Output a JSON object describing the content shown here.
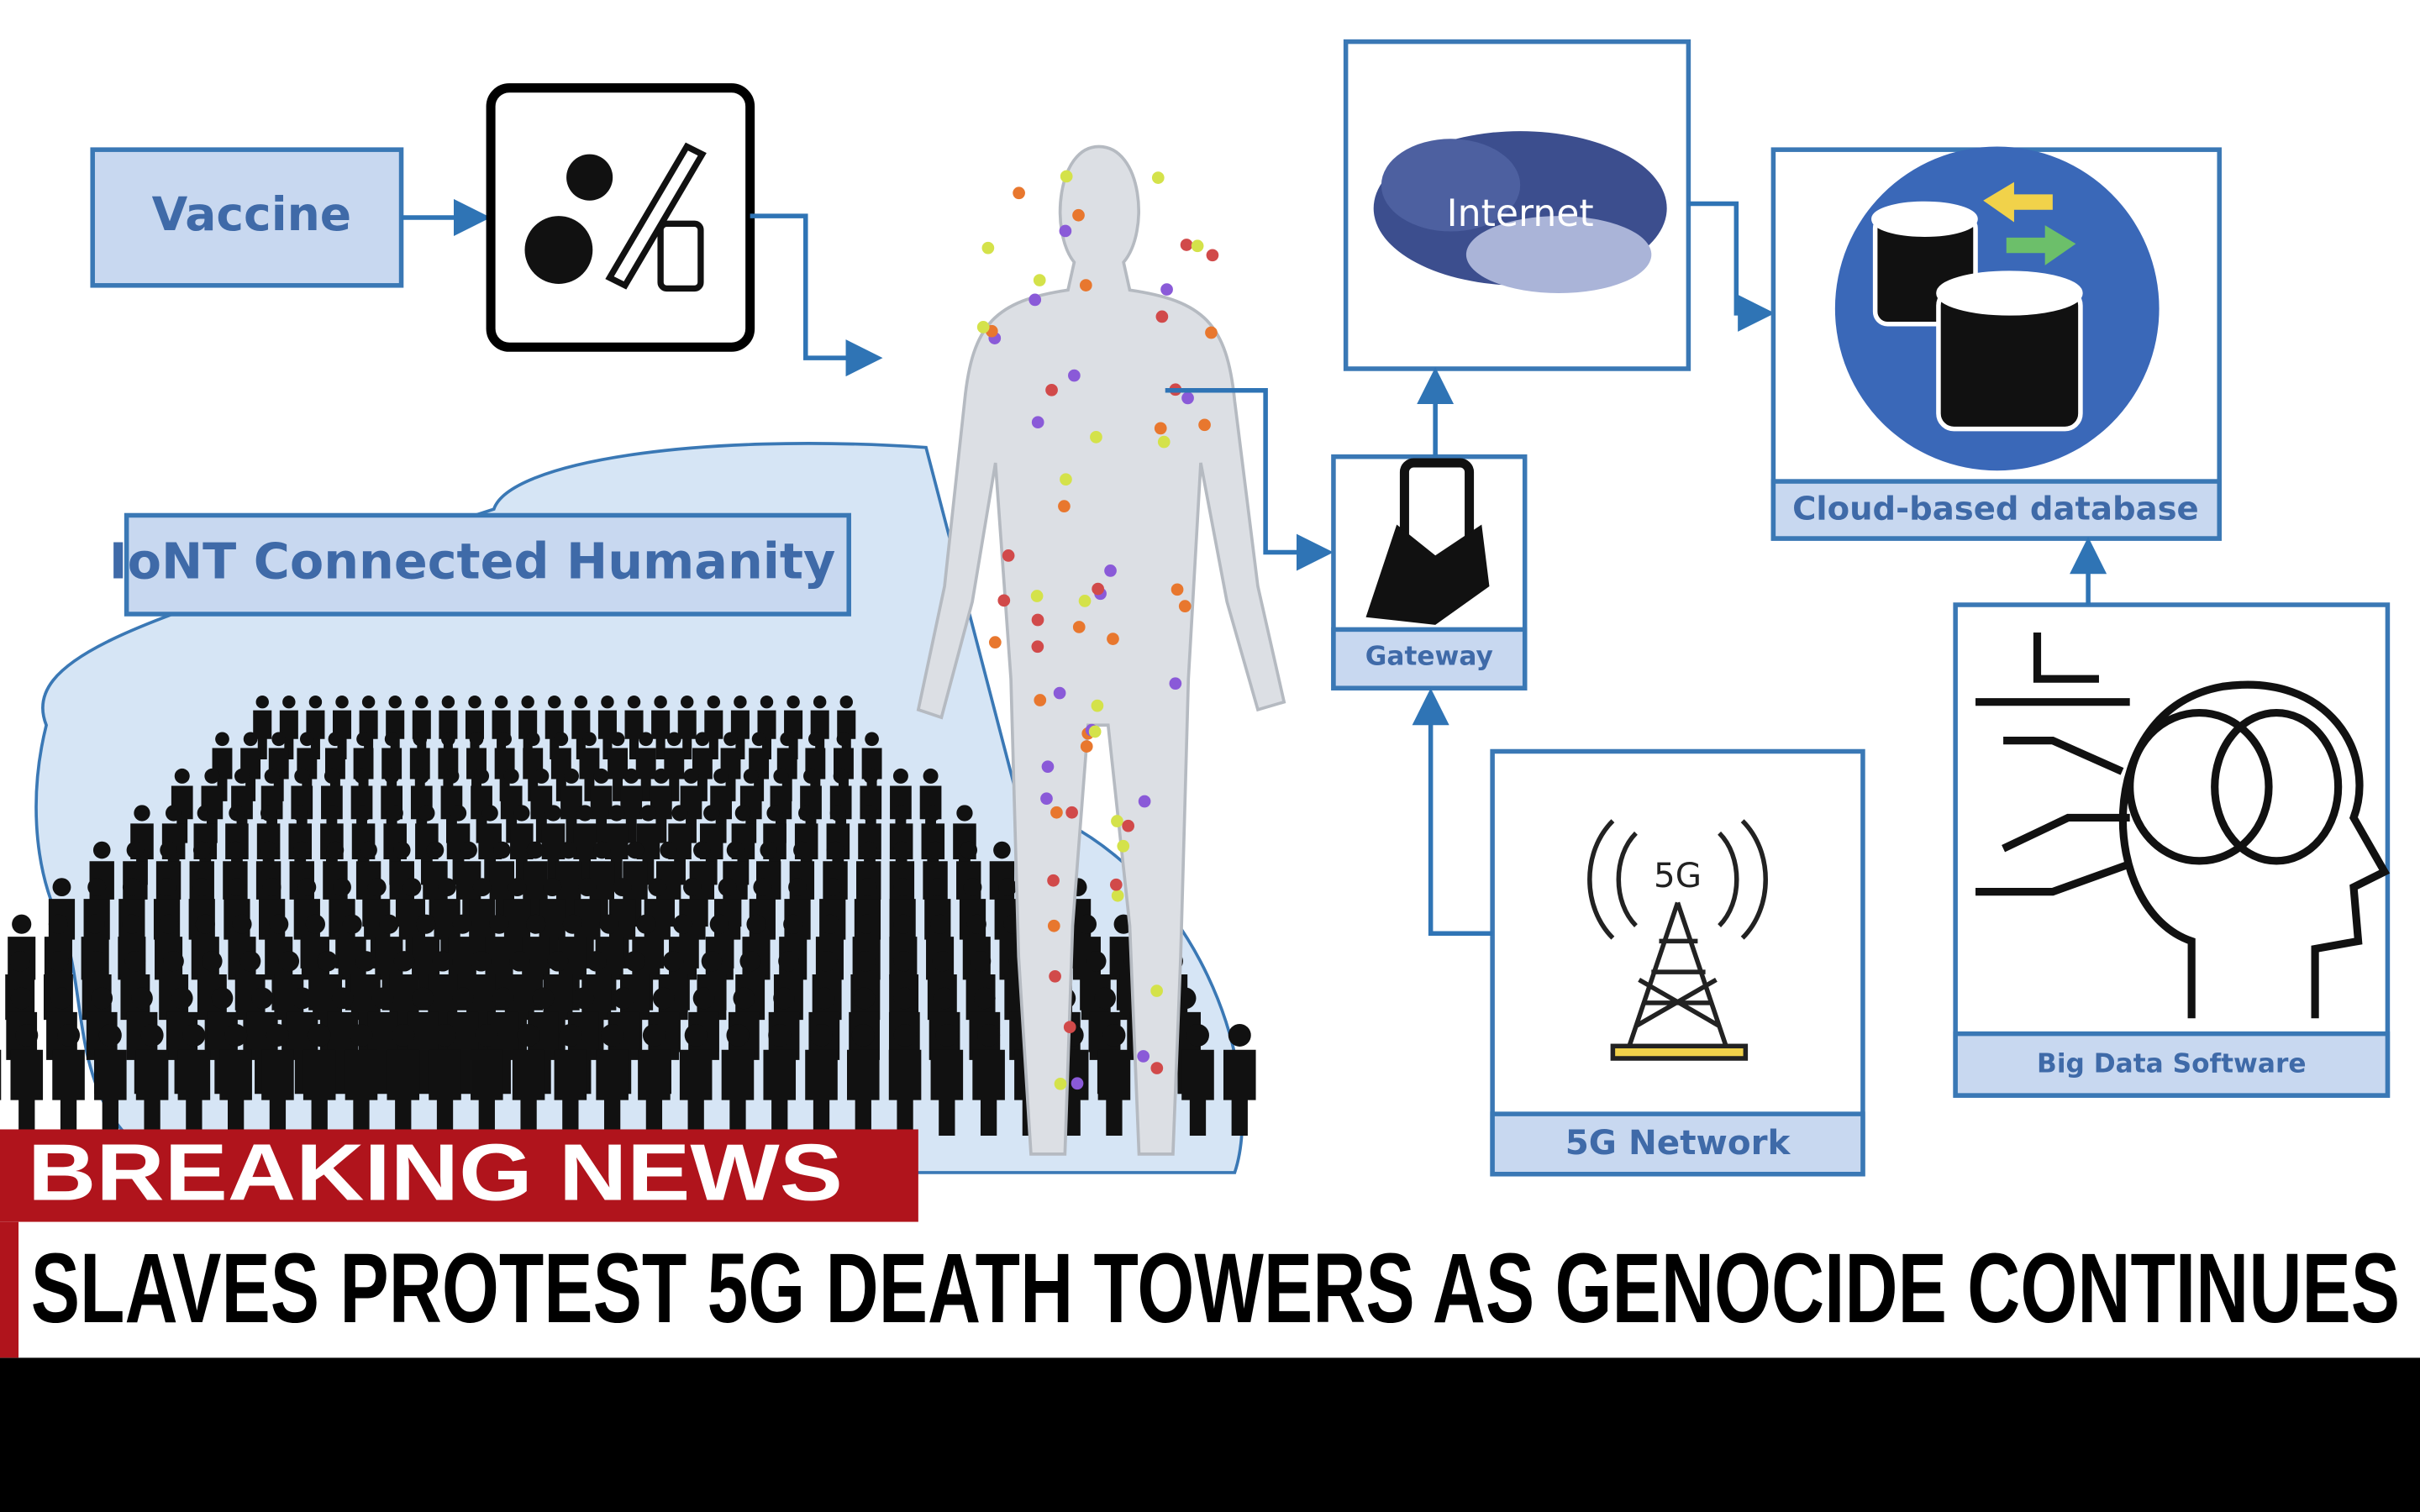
{
  "news": {
    "banner": "BREAKING NEWS",
    "headline": "SLAVES PROTEST 5G DEATH TOWERS AS GENOCIDE CONTINUES"
  },
  "nodes": [
    {
      "label": "Vaccine"
    },
    {
      "label": "IoNT Connected Humanity"
    },
    {
      "label": "Internet"
    },
    {
      "label": "Gateway"
    },
    {
      "label": "Cloud-based database"
    },
    {
      "label": "5G Network"
    },
    {
      "label": "Big Data Software"
    }
  ],
  "icons": {
    "tower": "5G"
  }
}
